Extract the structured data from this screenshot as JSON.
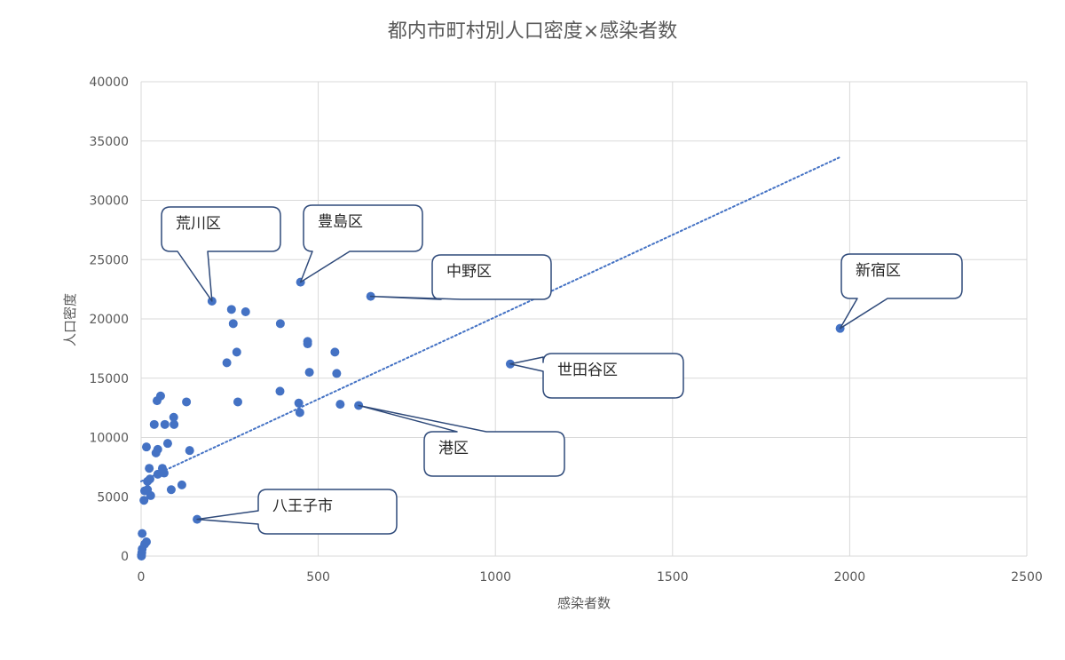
{
  "chart_data": {
    "type": "scatter",
    "title": "都内市町村別人口密度×感染者数",
    "xlabel": "感染者数",
    "ylabel": "人口密度",
    "xlim": [
      0,
      2500
    ],
    "ylim": [
      0,
      40000
    ],
    "xticks": [
      "0",
      "500",
      "1000",
      "1500",
      "2000",
      "2500"
    ],
    "yticks": [
      "0",
      "5000",
      "10000",
      "15000",
      "20000",
      "25000",
      "30000",
      "35000",
      "40000"
    ],
    "grid": true,
    "marker_color": "#4472c4",
    "trendline": {
      "style": "dotted",
      "color": "#4472c4",
      "from": [
        0,
        6300
      ],
      "to": [
        1970,
        33600
      ]
    },
    "points": [
      [
        200,
        21500
      ],
      [
        255,
        20800
      ],
      [
        295,
        20600
      ],
      [
        260,
        19600
      ],
      [
        393,
        19600
      ],
      [
        450,
        23100
      ],
      [
        648,
        21900
      ],
      [
        1973,
        19200
      ],
      [
        1042,
        16200
      ],
      [
        614,
        12700
      ],
      [
        158,
        3100
      ],
      [
        470,
        18100
      ],
      [
        470,
        17900
      ],
      [
        547,
        17200
      ],
      [
        270,
        17200
      ],
      [
        242,
        16300
      ],
      [
        475,
        15500
      ],
      [
        552,
        15400
      ],
      [
        392,
        13900
      ],
      [
        445,
        12900
      ],
      [
        448,
        12100
      ],
      [
        562,
        12800
      ],
      [
        273,
        13000
      ],
      [
        128,
        13000
      ],
      [
        55,
        13500
      ],
      [
        45,
        13100
      ],
      [
        92,
        11700
      ],
      [
        93,
        11100
      ],
      [
        67,
        11100
      ],
      [
        37,
        11100
      ],
      [
        75,
        9500
      ],
      [
        47,
        9000
      ],
      [
        42,
        8700
      ],
      [
        137,
        8900
      ],
      [
        15,
        9200
      ],
      [
        23,
        7400
      ],
      [
        60,
        7400
      ],
      [
        65,
        7000
      ],
      [
        47,
        6900
      ],
      [
        18,
        6300
      ],
      [
        25,
        6500
      ],
      [
        115,
        6000
      ],
      [
        85,
        5600
      ],
      [
        10,
        5500
      ],
      [
        18,
        5600
      ],
      [
        27,
        5100
      ],
      [
        8,
        4700
      ],
      [
        15,
        1200
      ],
      [
        10,
        1000
      ],
      [
        3,
        1900
      ],
      [
        3,
        600
      ],
      [
        2,
        300
      ],
      [
        1,
        100
      ],
      [
        1,
        0
      ]
    ],
    "annotations": [
      {
        "text": "荒川区",
        "x": 200,
        "y": 21500
      },
      {
        "text": "豊島区",
        "x": 450,
        "y": 23100
      },
      {
        "text": "中野区",
        "x": 648,
        "y": 21900
      },
      {
        "text": "新宿区",
        "x": 1973,
        "y": 19200
      },
      {
        "text": "世田谷区",
        "x": 1042,
        "y": 16200
      },
      {
        "text": "港区",
        "x": 614,
        "y": 12700
      },
      {
        "text": "八王子市",
        "x": 158,
        "y": 3100
      }
    ]
  }
}
